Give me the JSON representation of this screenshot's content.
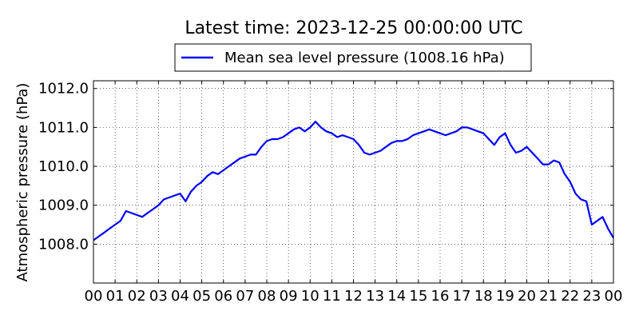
{
  "chart_data": {
    "type": "line",
    "title": "Latest time: 2023-12-25 00:00:00 UTC",
    "xlabel": "",
    "ylabel": "Atmospheric pressure (hPa)",
    "legend_position": "top-center",
    "grid": true,
    "grid_style": "dotted",
    "xlim": [
      0,
      24
    ],
    "ylim": [
      1007.0,
      1012.2
    ],
    "x_ticks": [
      0,
      1,
      2,
      3,
      4,
      5,
      6,
      7,
      8,
      9,
      10,
      11,
      12,
      13,
      14,
      15,
      16,
      17,
      18,
      19,
      20,
      21,
      22,
      23,
      24
    ],
    "x_tick_labels": [
      "00",
      "01",
      "02",
      "03",
      "04",
      "05",
      "06",
      "07",
      "08",
      "09",
      "10",
      "11",
      "12",
      "13",
      "14",
      "15",
      "16",
      "17",
      "18",
      "19",
      "20",
      "21",
      "22",
      "23",
      "00"
    ],
    "y_ticks": [
      1008.0,
      1009.0,
      1010.0,
      1011.0,
      1012.0
    ],
    "y_tick_labels": [
      "1008.0",
      "1009.0",
      "1010.0",
      "1011.0",
      "1012.0"
    ],
    "series": [
      {
        "name": "Mean sea level pressure (1008.16 hPa)",
        "color": "#0000ff",
        "x": [
          0,
          0.25,
          0.5,
          0.75,
          1.0,
          1.25,
          1.5,
          1.75,
          2.0,
          2.25,
          2.5,
          2.75,
          3.0,
          3.25,
          3.5,
          3.75,
          4.0,
          4.25,
          4.5,
          4.75,
          5.0,
          5.25,
          5.5,
          5.75,
          6.0,
          6.25,
          6.5,
          6.75,
          7.0,
          7.25,
          7.5,
          7.75,
          8.0,
          8.25,
          8.5,
          8.75,
          9.0,
          9.25,
          9.5,
          9.75,
          10.0,
          10.25,
          10.5,
          10.75,
          11.0,
          11.25,
          11.5,
          11.75,
          12.0,
          12.25,
          12.5,
          12.75,
          13.0,
          13.25,
          13.5,
          13.75,
          14.0,
          14.25,
          14.5,
          14.75,
          15.0,
          15.25,
          15.5,
          15.75,
          16.0,
          16.25,
          16.5,
          16.75,
          17.0,
          17.25,
          17.5,
          17.75,
          18.0,
          18.25,
          18.5,
          18.75,
          19.0,
          19.25,
          19.5,
          19.75,
          20.0,
          20.25,
          20.5,
          20.75,
          21.0,
          21.25,
          21.5,
          21.75,
          22.0,
          22.25,
          22.5,
          22.75,
          23.0,
          23.25,
          23.5,
          23.75,
          24.0
        ],
        "values": [
          1008.1,
          1008.2,
          1008.3,
          1008.4,
          1008.5,
          1008.6,
          1008.85,
          1008.8,
          1008.75,
          1008.7,
          1008.8,
          1008.9,
          1009.0,
          1009.15,
          1009.2,
          1009.25,
          1009.3,
          1009.1,
          1009.35,
          1009.5,
          1009.6,
          1009.75,
          1009.85,
          1009.8,
          1009.9,
          1010.0,
          1010.1,
          1010.2,
          1010.25,
          1010.3,
          1010.3,
          1010.5,
          1010.65,
          1010.7,
          1010.7,
          1010.75,
          1010.85,
          1010.95,
          1011.0,
          1010.9,
          1011.0,
          1011.15,
          1011.0,
          1010.9,
          1010.85,
          1010.75,
          1010.8,
          1010.75,
          1010.7,
          1010.55,
          1010.35,
          1010.3,
          1010.35,
          1010.4,
          1010.5,
          1010.6,
          1010.65,
          1010.65,
          1010.7,
          1010.8,
          1010.85,
          1010.9,
          1010.95,
          1010.9,
          1010.85,
          1010.8,
          1010.85,
          1010.9,
          1011.0,
          1011.0,
          1010.95,
          1010.9,
          1010.85,
          1010.7,
          1010.55,
          1010.75,
          1010.85,
          1010.55,
          1010.35,
          1010.4,
          1010.5,
          1010.35,
          1010.2,
          1010.05,
          1010.05,
          1010.15,
          1010.1,
          1009.8,
          1009.6,
          1009.3,
          1009.15,
          1009.1,
          1008.5,
          1008.6,
          1008.7,
          1008.4,
          1008.16
        ]
      }
    ]
  }
}
